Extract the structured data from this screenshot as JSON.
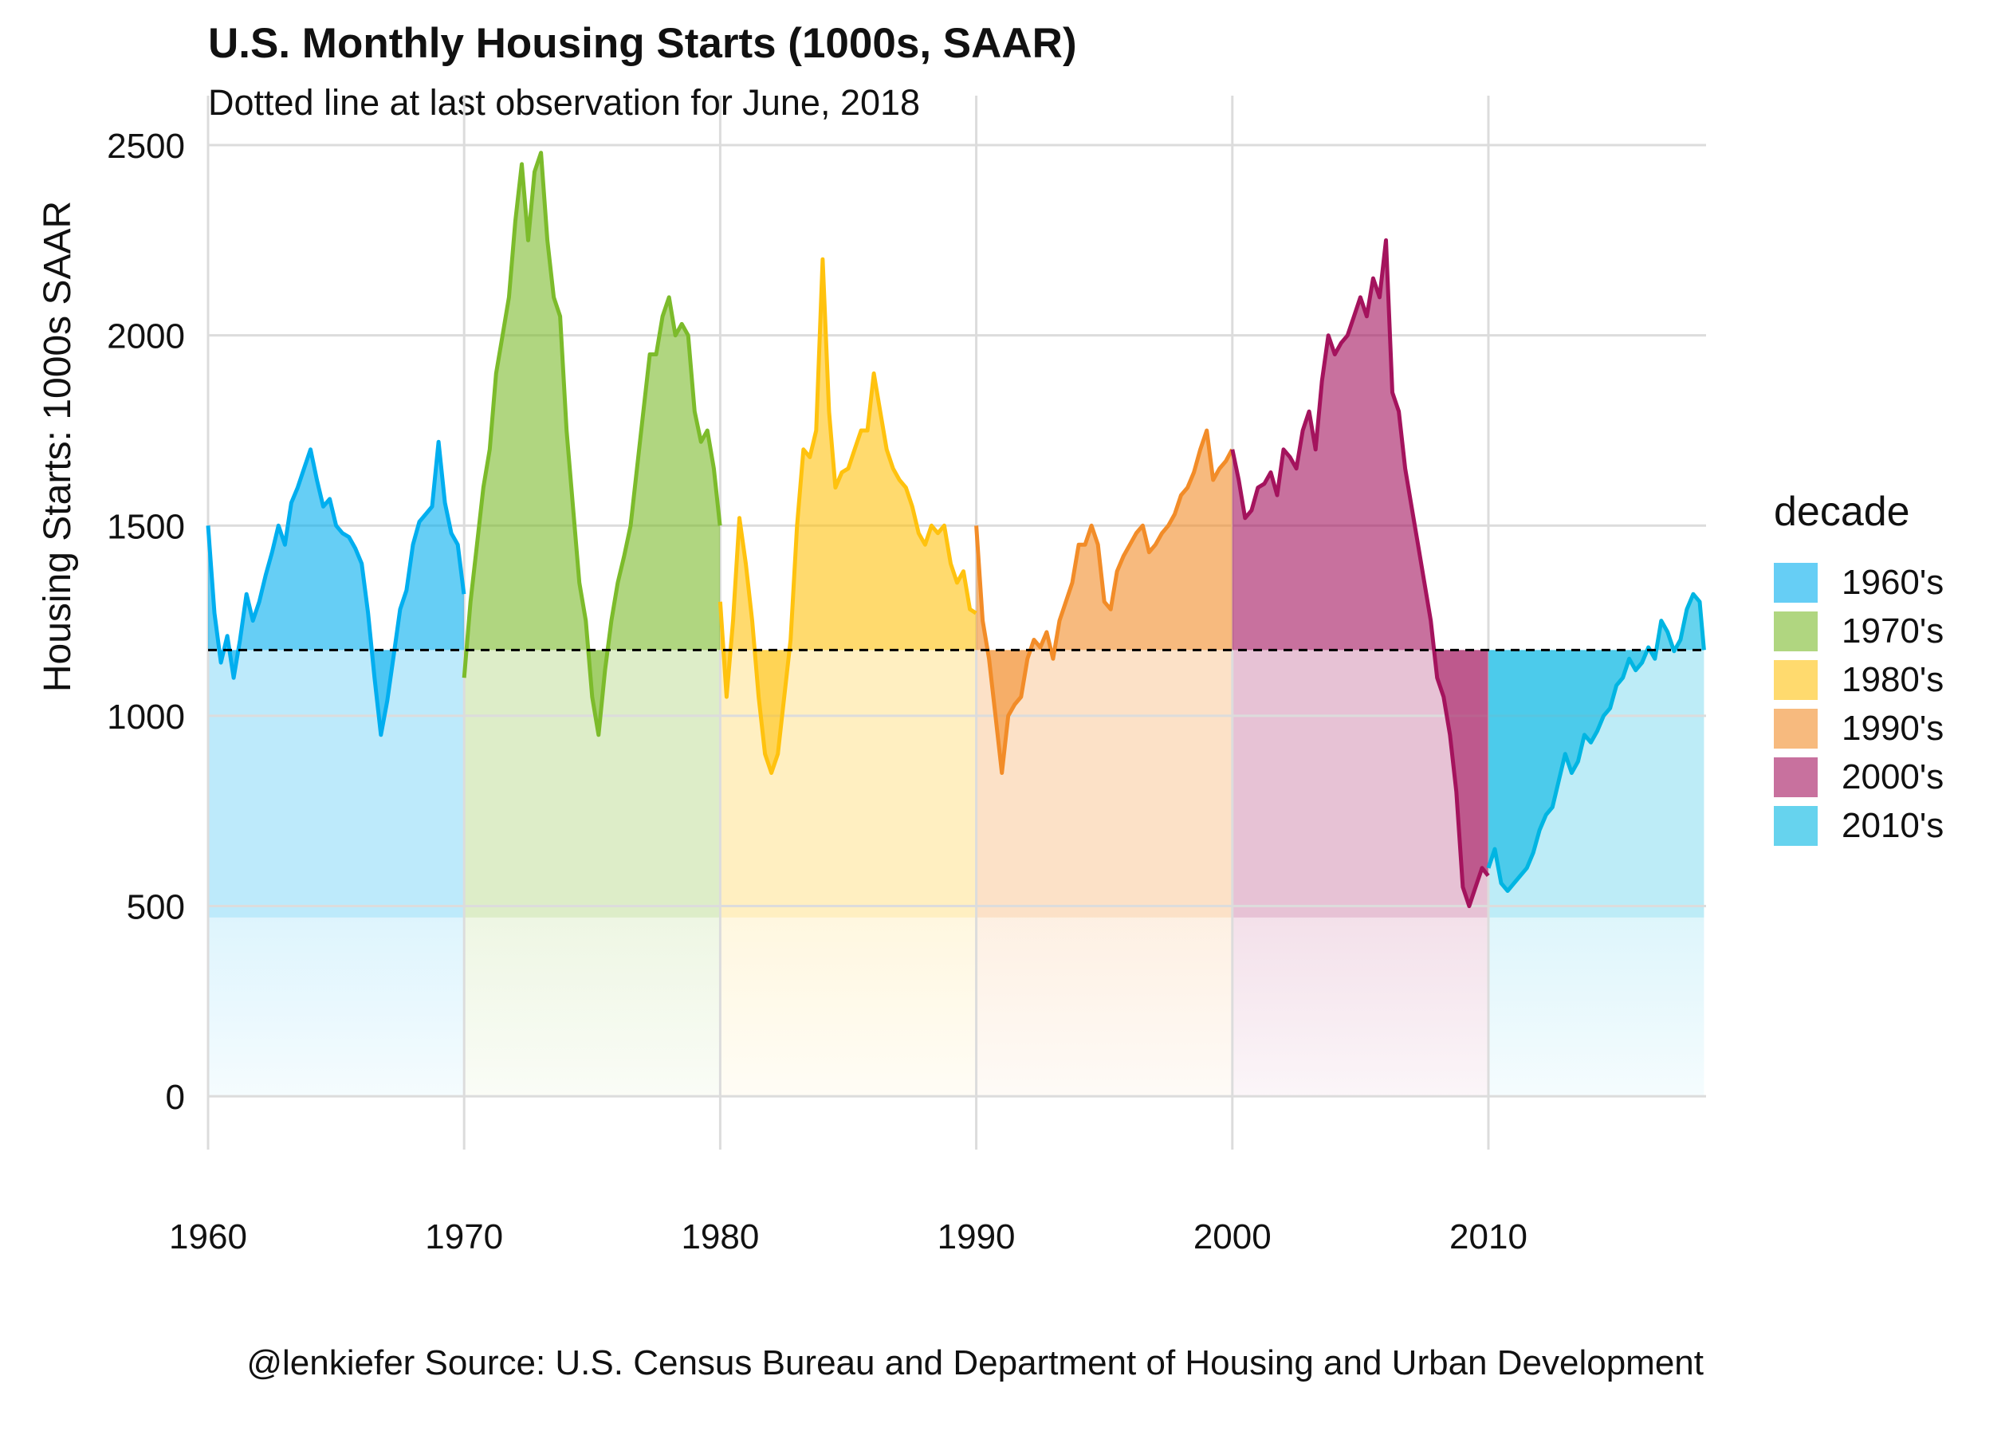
{
  "chart_data": {
    "type": "area",
    "title": "U.S. Monthly Housing Starts (1000s, SAAR)",
    "subtitle": "Dotted line at last observation for June, 2018",
    "ylabel": "Housing Starts: 1000s SAAR",
    "xlabel": "",
    "caption": "@lenkiefer Source: U.S. Census Bureau and Department of Housing and Urban Development",
    "xlim": [
      1960,
      2018.5
    ],
    "ylim": [
      0,
      2500
    ],
    "x_ticks": [
      "1960",
      "1970",
      "1980",
      "1990",
      "2000",
      "2010"
    ],
    "y_ticks": [
      "0",
      "500",
      "1000",
      "1500",
      "2000",
      "2500"
    ],
    "grid": true,
    "reference_line": {
      "y": 1173,
      "style": "dashed",
      "label": "last observation June, 2018"
    },
    "legend": {
      "title": "decade",
      "position": "right"
    },
    "series": [
      {
        "name": "1960's",
        "color": "#00aeef",
        "x": [
          1960.0,
          1960.25,
          1960.5,
          1960.75,
          1961.0,
          1961.25,
          1961.5,
          1961.75,
          1962.0,
          1962.25,
          1962.5,
          1962.75,
          1963.0,
          1963.25,
          1963.5,
          1963.75,
          1964.0,
          1964.25,
          1964.5,
          1964.75,
          1965.0,
          1965.25,
          1965.5,
          1965.75,
          1966.0,
          1966.25,
          1966.5,
          1966.75,
          1967.0,
          1967.25,
          1967.5,
          1967.75,
          1968.0,
          1968.25,
          1968.5,
          1968.75,
          1969.0,
          1969.25,
          1969.5,
          1969.75,
          1969.99
        ],
        "values": [
          1500,
          1270,
          1140,
          1210,
          1100,
          1200,
          1320,
          1250,
          1300,
          1370,
          1430,
          1500,
          1450,
          1560,
          1600,
          1650,
          1700,
          1620,
          1550,
          1570,
          1500,
          1480,
          1470,
          1440,
          1400,
          1270,
          1100,
          950,
          1040,
          1160,
          1280,
          1330,
          1450,
          1510,
          1530,
          1550,
          1720,
          1560,
          1480,
          1450,
          1320
        ]
      },
      {
        "name": "1970's",
        "color": "#7cbb2b",
        "x": [
          1970.0,
          1970.25,
          1970.5,
          1970.75,
          1971.0,
          1971.25,
          1971.5,
          1971.75,
          1972.0,
          1972.25,
          1972.5,
          1972.75,
          1973.0,
          1973.25,
          1973.5,
          1973.75,
          1974.0,
          1974.25,
          1974.5,
          1974.75,
          1975.0,
          1975.25,
          1975.5,
          1975.75,
          1976.0,
          1976.25,
          1976.5,
          1976.75,
          1977.0,
          1977.25,
          1977.5,
          1977.75,
          1978.0,
          1978.25,
          1978.5,
          1978.75,
          1979.0,
          1979.25,
          1979.5,
          1979.75,
          1979.99
        ],
        "values": [
          1100,
          1300,
          1450,
          1600,
          1700,
          1900,
          2000,
          2100,
          2300,
          2450,
          2250,
          2430,
          2480,
          2250,
          2100,
          2050,
          1750,
          1550,
          1350,
          1250,
          1050,
          950,
          1120,
          1250,
          1350,
          1420,
          1500,
          1650,
          1800,
          1950,
          1950,
          2050,
          2100,
          2000,
          2030,
          2000,
          1800,
          1720,
          1750,
          1650,
          1500
        ]
      },
      {
        "name": "1980's",
        "color": "#ffc20e",
        "x": [
          1980.0,
          1980.25,
          1980.5,
          1980.75,
          1981.0,
          1981.25,
          1981.5,
          1981.75,
          1982.0,
          1982.25,
          1982.5,
          1982.75,
          1983.0,
          1983.25,
          1983.5,
          1983.75,
          1984.0,
          1984.25,
          1984.5,
          1984.75,
          1985.0,
          1985.25,
          1985.5,
          1985.75,
          1986.0,
          1986.25,
          1986.5,
          1986.75,
          1987.0,
          1987.25,
          1987.5,
          1987.75,
          1988.0,
          1988.25,
          1988.5,
          1988.75,
          1989.0,
          1989.25,
          1989.5,
          1989.75,
          1989.99
        ],
        "values": [
          1300,
          1050,
          1250,
          1520,
          1400,
          1250,
          1050,
          900,
          850,
          900,
          1050,
          1200,
          1500,
          1700,
          1680,
          1750,
          2200,
          1800,
          1600,
          1640,
          1650,
          1700,
          1750,
          1750,
          1900,
          1800,
          1700,
          1650,
          1620,
          1600,
          1550,
          1480,
          1450,
          1500,
          1480,
          1500,
          1400,
          1350,
          1380,
          1280,
          1270
        ]
      },
      {
        "name": "1990's",
        "color": "#f28c28",
        "x": [
          1990.0,
          1990.25,
          1990.5,
          1990.75,
          1991.0,
          1991.25,
          1991.5,
          1991.75,
          1992.0,
          1992.25,
          1992.5,
          1992.75,
          1993.0,
          1993.25,
          1993.5,
          1993.75,
          1994.0,
          1994.25,
          1994.5,
          1994.75,
          1995.0,
          1995.25,
          1995.5,
          1995.75,
          1996.0,
          1996.25,
          1996.5,
          1996.75,
          1997.0,
          1997.25,
          1997.5,
          1997.75,
          1998.0,
          1998.25,
          1998.5,
          1998.75,
          1999.0,
          1999.25,
          1999.5,
          1999.75,
          1999.99
        ],
        "values": [
          1500,
          1250,
          1150,
          1000,
          850,
          1000,
          1030,
          1050,
          1150,
          1200,
          1180,
          1220,
          1150,
          1250,
          1300,
          1350,
          1450,
          1450,
          1500,
          1450,
          1300,
          1280,
          1380,
          1420,
          1450,
          1480,
          1500,
          1430,
          1450,
          1480,
          1500,
          1530,
          1580,
          1600,
          1640,
          1700,
          1750,
          1620,
          1650,
          1670,
          1700
        ]
      },
      {
        "name": "2000's",
        "color": "#a4135d",
        "x": [
          2000.0,
          2000.25,
          2000.5,
          2000.75,
          2001.0,
          2001.25,
          2001.5,
          2001.75,
          2002.0,
          2002.25,
          2002.5,
          2002.75,
          2003.0,
          2003.25,
          2003.5,
          2003.75,
          2004.0,
          2004.25,
          2004.5,
          2004.75,
          2005.0,
          2005.25,
          2005.5,
          2005.75,
          2006.0,
          2006.25,
          2006.5,
          2006.75,
          2007.0,
          2007.25,
          2007.5,
          2007.75,
          2008.0,
          2008.25,
          2008.5,
          2008.75,
          2009.0,
          2009.25,
          2009.5,
          2009.75,
          2009.99
        ],
        "values": [
          1700,
          1620,
          1520,
          1540,
          1600,
          1610,
          1640,
          1580,
          1700,
          1680,
          1650,
          1750,
          1800,
          1700,
          1880,
          2000,
          1950,
          1980,
          2000,
          2050,
          2100,
          2050,
          2150,
          2100,
          2250,
          1850,
          1800,
          1650,
          1550,
          1450,
          1350,
          1250,
          1100,
          1050,
          950,
          800,
          550,
          500,
          550,
          600,
          580
        ]
      },
      {
        "name": "2010's",
        "color": "#00b5e2",
        "x": [
          2010.0,
          2010.25,
          2010.5,
          2010.75,
          2011.0,
          2011.25,
          2011.5,
          2011.75,
          2012.0,
          2012.25,
          2012.5,
          2012.75,
          2013.0,
          2013.25,
          2013.5,
          2013.75,
          2014.0,
          2014.25,
          2014.5,
          2014.75,
          2015.0,
          2015.25,
          2015.5,
          2015.75,
          2016.0,
          2016.25,
          2016.5,
          2016.75,
          2017.0,
          2017.25,
          2017.5,
          2017.75,
          2018.0,
          2018.25,
          2018.42
        ],
        "values": [
          600,
          650,
          560,
          540,
          560,
          580,
          600,
          640,
          700,
          740,
          760,
          830,
          900,
          850,
          880,
          950,
          930,
          960,
          1000,
          1020,
          1080,
          1100,
          1150,
          1120,
          1140,
          1180,
          1150,
          1250,
          1220,
          1170,
          1200,
          1280,
          1320,
          1300,
          1173
        ]
      }
    ]
  }
}
